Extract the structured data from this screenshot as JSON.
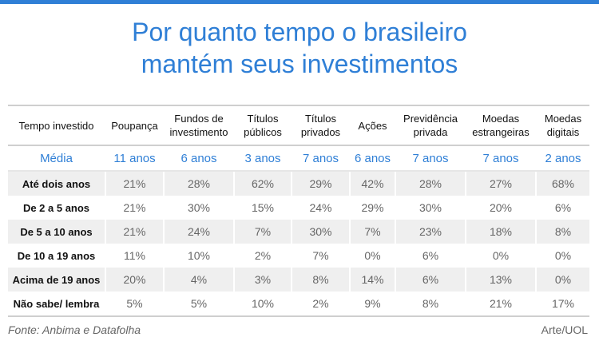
{
  "title": {
    "line1": "Por quanto tempo o brasileiro",
    "line2": "mantém seus investimentos"
  },
  "colors": {
    "accent": "#2f7fd6",
    "row_alt": "#efefef",
    "rule": "#cfcfcf"
  },
  "chart_data": {
    "type": "table",
    "corner_header": "Tempo investido",
    "columns": [
      "Poupança",
      "Fundos de investimento",
      "Títulos públicos",
      "Títulos privados",
      "Ações",
      "Previdência privada",
      "Moedas estrangeiras",
      "Moedas digitais"
    ],
    "average_row": {
      "label": "Média",
      "values": [
        "11 anos",
        "6 anos",
        "3 anos",
        "7 anos",
        "6 anos",
        "7 anos",
        "7 anos",
        "2 anos"
      ]
    },
    "rows": [
      {
        "label": "Até dois anos",
        "values": [
          "21%",
          "28%",
          "62%",
          "29%",
          "42%",
          "28%",
          "27%",
          "68%"
        ]
      },
      {
        "label": "De 2 a 5 anos",
        "values": [
          "21%",
          "30%",
          "15%",
          "24%",
          "29%",
          "30%",
          "20%",
          "6%"
        ]
      },
      {
        "label": "De 5 a 10 anos",
        "values": [
          "21%",
          "24%",
          "7%",
          "30%",
          "7%",
          "23%",
          "18%",
          "8%"
        ]
      },
      {
        "label": "De 10 a 19 anos",
        "values": [
          "11%",
          "10%",
          "2%",
          "7%",
          "0%",
          "6%",
          "0%",
          "0%"
        ]
      },
      {
        "label": "Acima de 19 anos",
        "values": [
          "20%",
          "4%",
          "3%",
          "8%",
          "14%",
          "6%",
          "13%",
          "0%"
        ]
      },
      {
        "label": "Não sabe/ lembra",
        "values": [
          "5%",
          "5%",
          "10%",
          "2%",
          "9%",
          "8%",
          "21%",
          "17%"
        ]
      }
    ]
  },
  "footer": {
    "source": "Fonte: Anbima e Datafolha",
    "credit": "Arte/UOL"
  }
}
